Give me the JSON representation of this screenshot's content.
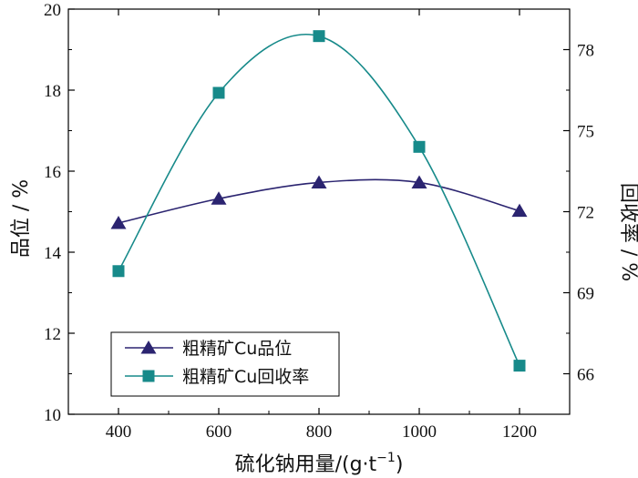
{
  "chart_data": {
    "type": "line",
    "x": [
      400,
      600,
      800,
      1000,
      1200
    ],
    "xlabel": "硫化钠用量/(g·t",
    "xlabel_sup": "−1",
    "xlabel_close": ")",
    "xlim": [
      300,
      1300
    ],
    "xticks": [
      400,
      600,
      800,
      1000,
      1200
    ],
    "ylabel_left": "品位 / %",
    "ylim_left": [
      10,
      20
    ],
    "yticks_left": [
      10,
      12,
      14,
      16,
      18,
      20
    ],
    "ylabel_right": "回收率 / %",
    "ylim_right": [
      64.5,
      79.5
    ],
    "yticks_right": [
      66,
      69,
      72,
      75,
      78
    ],
    "grid": false,
    "legend_position": "bottom-left",
    "series": [
      {
        "name": "粗精矿Cu品位",
        "axis": "left",
        "marker": "triangle",
        "color": "#2b2470",
        "values": [
          14.72,
          15.32,
          15.72,
          15.72,
          15.02
        ]
      },
      {
        "name": "粗精矿Cu回收率",
        "axis": "right",
        "marker": "square",
        "color": "#178a8a",
        "values": [
          69.8,
          76.4,
          78.5,
          74.4,
          66.3
        ]
      }
    ]
  }
}
